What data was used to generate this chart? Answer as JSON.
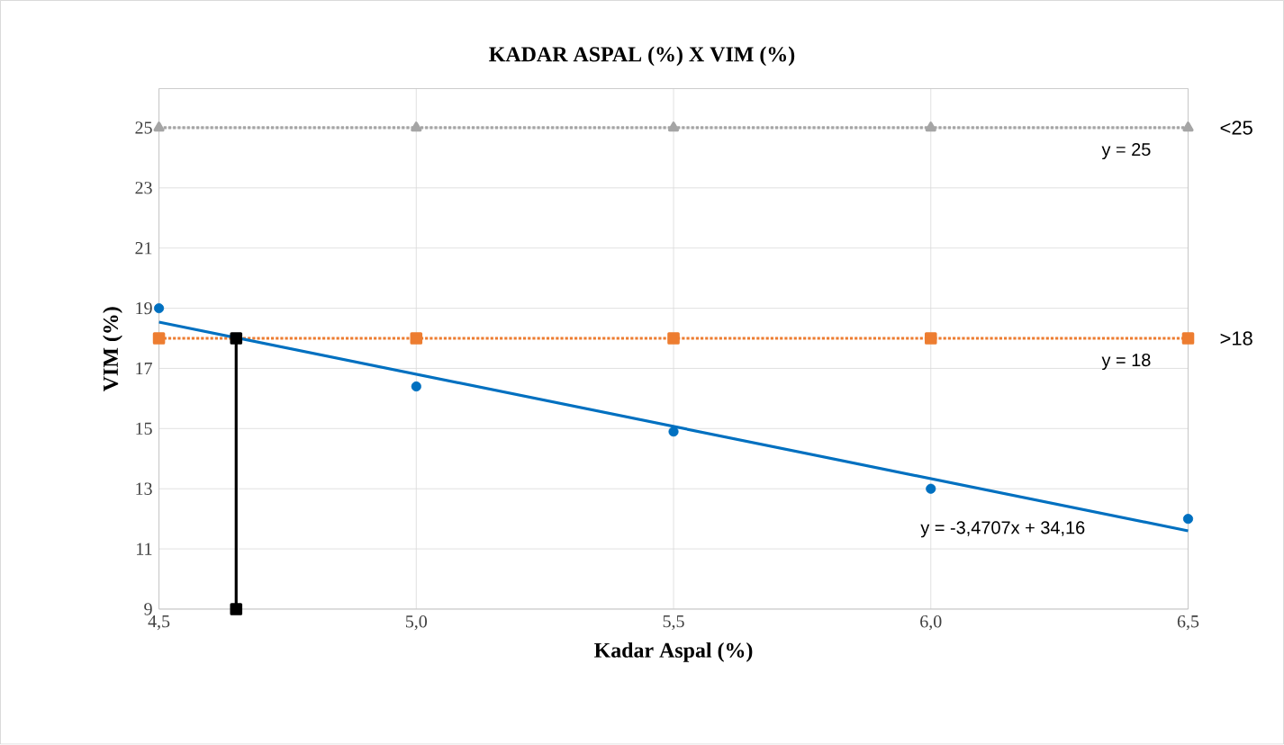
{
  "chart_data": {
    "type": "scatter",
    "title": "KADAR ASPAL (%) X VIM (%)",
    "xlabel": "Kadar Aspal (%)",
    "ylabel": "VIM (%)",
    "xlim": [
      4.5,
      6.5
    ],
    "ylim": [
      9,
      26.3
    ],
    "xticks": [
      {
        "value": 4.5,
        "label": "4,5"
      },
      {
        "value": 5.0,
        "label": "5,0"
      },
      {
        "value": 5.5,
        "label": "5,5"
      },
      {
        "value": 6.0,
        "label": "6,0"
      },
      {
        "value": 6.5,
        "label": "6,5"
      }
    ],
    "yticks": [
      9,
      11,
      13,
      15,
      17,
      19,
      21,
      23,
      25
    ],
    "grid": true,
    "series": [
      {
        "type": "line",
        "name": "<25",
        "color": "#a5a5a5",
        "marker": "triangle",
        "line_style": "dotted",
        "x": [
          4.5,
          5.0,
          5.5,
          6.0,
          6.5
        ],
        "values": [
          25,
          25,
          25,
          25,
          25
        ]
      },
      {
        "type": "line",
        "name": ">18",
        "color": "#ed7d31",
        "marker": "square",
        "line_style": "dotted",
        "x": [
          4.5,
          5.0,
          5.5,
          6.0,
          6.5
        ],
        "values": [
          18,
          18,
          18,
          18,
          18
        ]
      },
      {
        "color": "#0070c0",
        "marker": "circle",
        "x": [
          4.5,
          5.0,
          5.5,
          6.0,
          6.5
        ],
        "values": [
          19.0,
          16.4,
          14.9,
          13.0,
          12.0
        ]
      },
      {
        "type": "line",
        "color": "#0070c0",
        "marker": "none",
        "line_style": "solid",
        "x": [
          4.5,
          6.5
        ],
        "values": [
          18.54,
          11.6
        ]
      },
      {
        "type": "line",
        "color": "#000000",
        "marker": "square",
        "line_style": "solid",
        "x": [
          4.65,
          4.65
        ],
        "values": [
          9,
          18
        ]
      }
    ],
    "annotations": [
      "y = 25",
      "y = 18",
      "y = -3,4707x + 34,16"
    ]
  }
}
